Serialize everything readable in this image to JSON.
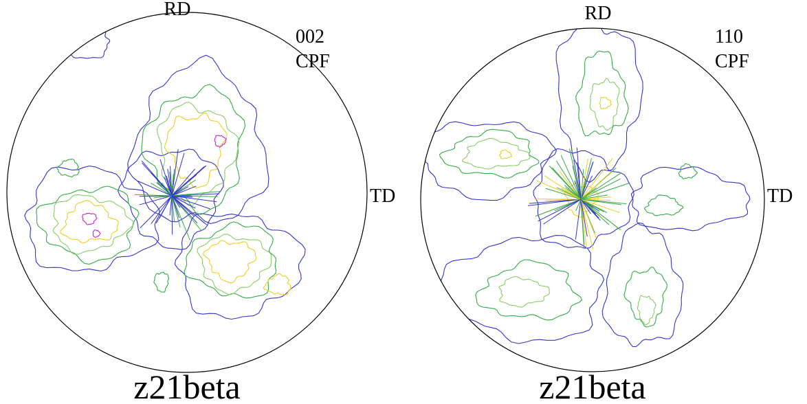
{
  "figures": [
    {
      "top_label": "RD",
      "side_label": "TD",
      "plane": "002",
      "method": "CPF",
      "caption": "z21beta"
    },
    {
      "top_label": "RD",
      "side_label": "TD",
      "plane": "110",
      "method": "CPF",
      "caption": "z21beta"
    }
  ]
}
